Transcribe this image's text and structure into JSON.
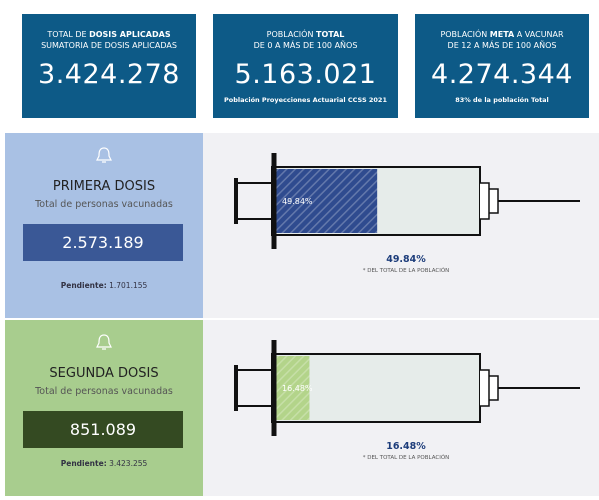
{
  "cards": [
    {
      "line1": [
        "TOTAL DE ",
        "DOSIS APLICADAS"
      ],
      "line2": "SUMATORIA DE DOSIS APLICADAS",
      "value": "3.424.278"
    },
    {
      "line1": [
        "POBLACIÓN ",
        "TOTAL"
      ],
      "line2": "DE 0 A MÁS DE 100 AÑOS",
      "value": "5.163.021",
      "note": "Población Proyecciones Actuarial CCSS 2021"
    },
    {
      "line1": [
        "POBLACIÓN ",
        "META",
        " A VACUNAR"
      ],
      "line2": "DE 12 A MÁS DE 100 AÑOS",
      "value": "4.274.344",
      "note": "83% de la población Total"
    }
  ],
  "doses": [
    {
      "title": "PRIMERA DOSIS",
      "subtitle": "Total de personas vacunadas",
      "count": "2.573.189",
      "pending_label": "Pendiente:",
      "pending": "1.701.155",
      "percent": {
        "value": 49.84,
        "label": "49.84%"
      },
      "percent_note": "* DEL TOTAL DE LA POBLACIÓN"
    },
    {
      "title": "SEGUNDA DOSIS",
      "subtitle": "Total de personas vacunadas",
      "count": "851.089",
      "pending_label": "Pendiente:",
      "pending": "3.423.255",
      "percent": {
        "value": 16.48,
        "label": "16.48%"
      },
      "percent_note": "* DEL TOTAL DE LA POBLACIÓN"
    }
  ]
}
